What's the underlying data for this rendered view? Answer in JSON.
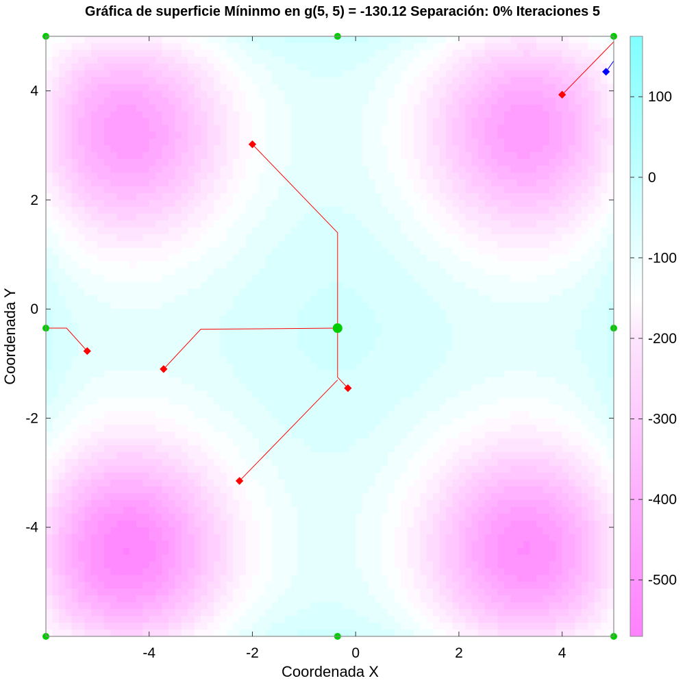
{
  "chart_data": {
    "type": "heatmap",
    "title": "Gráfica de superficie Míninmo en g(5, 5) = -130.12 Separación: 0% Iteraciones 5",
    "xlabel": "Coordenada X",
    "ylabel": "Coordenada Y",
    "xlim": [
      -6,
      5
    ],
    "ylim": [
      -6,
      5
    ],
    "x_ticks": [
      "-4",
      "-2",
      "0",
      "2",
      "4"
    ],
    "y_ticks": [
      "-4",
      "-2",
      "0",
      "2",
      "4"
    ],
    "colorbar": {
      "range": [
        -570,
        175
      ],
      "ticks": [
        "100",
        "0",
        "-100",
        "-200",
        "-300",
        "-400",
        "-500"
      ],
      "low_color": "#ff80ff",
      "mid_color": "#ffffff",
      "high_color": "#80ffff"
    },
    "surface_minima": [
      {
        "x": -4.45,
        "y": 3.25
      },
      {
        "x": 3.3,
        "y": 3.3
      },
      {
        "x": -4.45,
        "y": -4.45
      },
      {
        "x": 3.3,
        "y": -4.45
      }
    ],
    "surface_center_max": {
      "x": -0.3,
      "y": -0.3
    },
    "green_points": [
      {
        "x": -6,
        "y": 5
      },
      {
        "x": -0.35,
        "y": 5
      },
      {
        "x": 5,
        "y": 5
      },
      {
        "x": -6,
        "y": -0.35
      },
      {
        "x": -0.35,
        "y": -0.35
      },
      {
        "x": 5,
        "y": -0.35
      },
      {
        "x": -6,
        "y": -6
      },
      {
        "x": -0.35,
        "y": -6
      },
      {
        "x": 5,
        "y": -6
      }
    ],
    "red_series": {
      "color": "#ff0000",
      "paths": [
        [
          {
            "x": -2.0,
            "y": 3.02
          },
          {
            "x": -0.35,
            "y": 1.4
          },
          {
            "x": -0.35,
            "y": -0.35
          }
        ],
        [
          {
            "x": 4.0,
            "y": 3.93
          },
          {
            "x": 5.0,
            "y": 4.9
          }
        ],
        [
          {
            "x": -5.2,
            "y": -0.77
          },
          {
            "x": -5.6,
            "y": -0.35
          },
          {
            "x": -6,
            "y": -0.35
          }
        ],
        [
          {
            "x": -3.72,
            "y": -1.1
          },
          {
            "x": -3.0,
            "y": -0.37
          },
          {
            "x": -0.35,
            "y": -0.35
          }
        ],
        [
          {
            "x": -0.15,
            "y": -1.45
          },
          {
            "x": -0.35,
            "y": -1.25
          },
          {
            "x": -0.35,
            "y": -0.35
          }
        ],
        [
          {
            "x": -2.25,
            "y": -3.15
          },
          {
            "x": -0.35,
            "y": -1.3
          }
        ]
      ]
    },
    "blue_series": {
      "color": "#0000ff",
      "path": [
        {
          "x": 4.85,
          "y": 4.35
        },
        {
          "x": 5.0,
          "y": 4.55
        },
        {
          "x": 5.0,
          "y": 4.95
        }
      ]
    }
  }
}
